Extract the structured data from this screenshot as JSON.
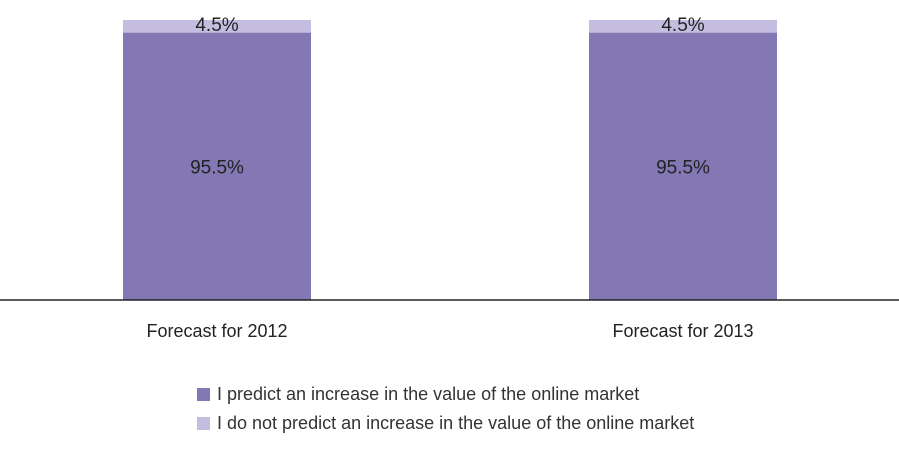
{
  "chart_data": {
    "type": "bar",
    "stacked": true,
    "categories": [
      "Forecast for 2012",
      "Forecast for 2013"
    ],
    "series": [
      {
        "name": "I predict an increase in the value of the online market",
        "values": [
          95.5,
          95.5
        ],
        "labels": [
          "95.5%",
          "95.5%"
        ],
        "color": "#8478b4"
      },
      {
        "name": "I do not predict an increase in the value of the online market",
        "values": [
          4.5,
          4.5
        ],
        "labels": [
          "4.5%",
          "4.5%"
        ],
        "color": "#c5bde0"
      }
    ],
    "ylim": [
      0,
      100
    ],
    "grid": false,
    "legend": "bottom"
  }
}
